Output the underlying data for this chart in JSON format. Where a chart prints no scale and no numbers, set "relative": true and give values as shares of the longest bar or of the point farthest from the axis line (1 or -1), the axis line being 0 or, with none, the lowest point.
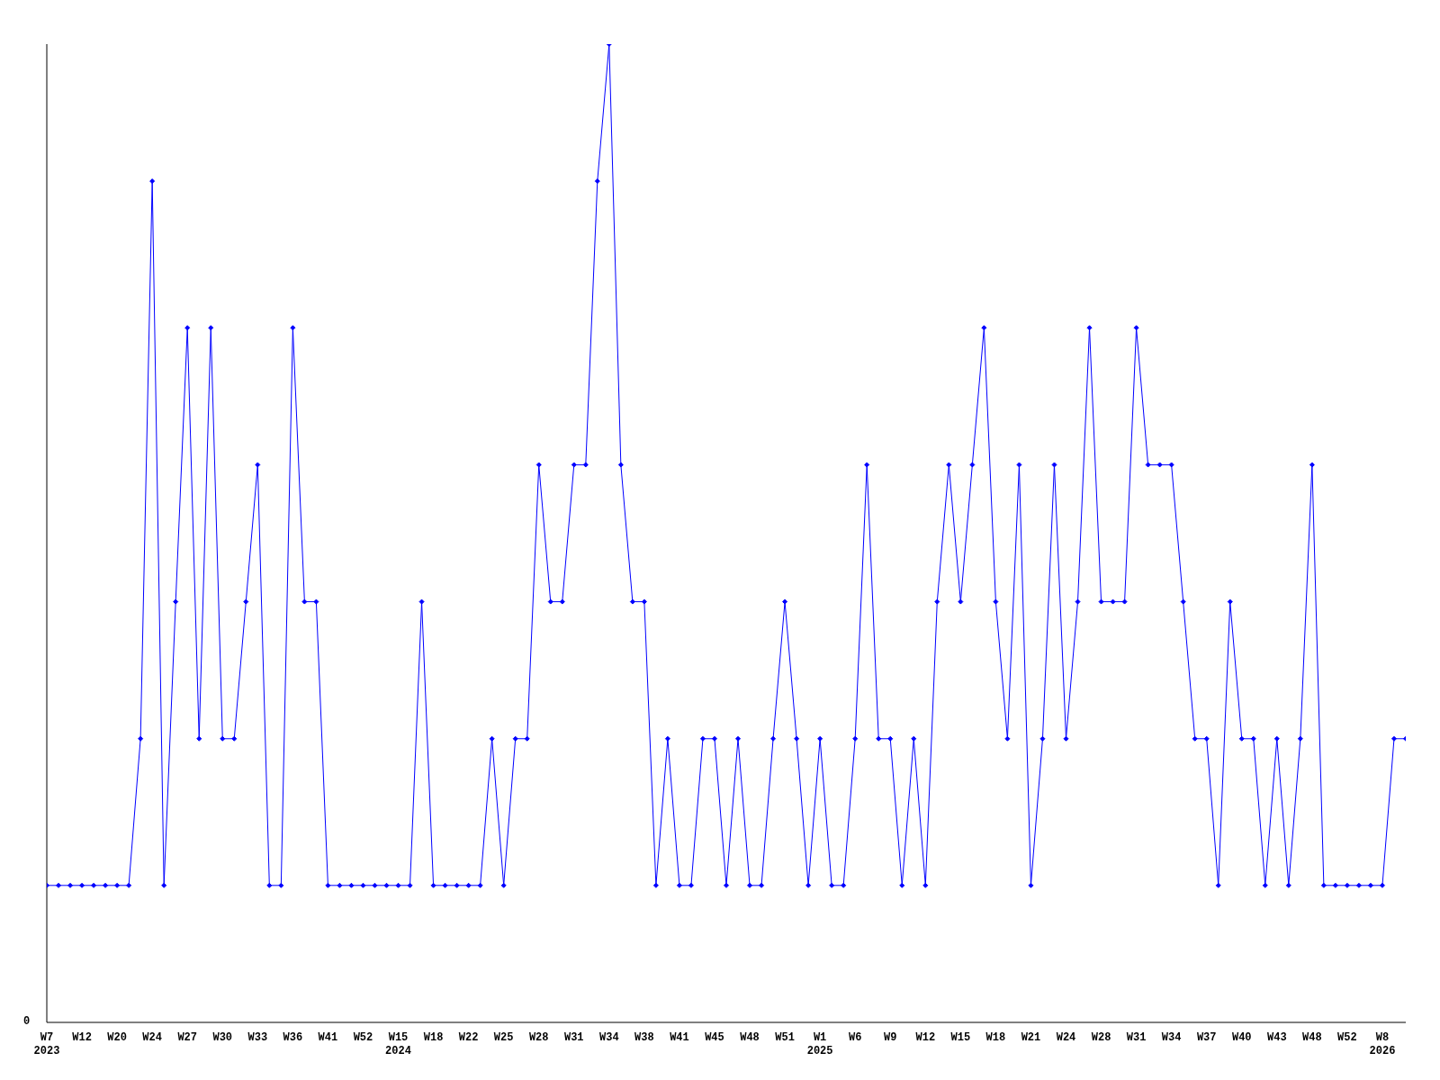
{
  "chart_data": {
    "type": "line",
    "relative": true,
    "categories": [
      "W7\n2023",
      null,
      null,
      "W12",
      null,
      null,
      "W20",
      null,
      null,
      "W24",
      null,
      null,
      "W27",
      null,
      null,
      "W30",
      null,
      null,
      "W33",
      null,
      null,
      "W36",
      null,
      null,
      "W41",
      null,
      null,
      "W52",
      null,
      null,
      "W15\n2024",
      null,
      null,
      "W18",
      null,
      null,
      "W22",
      null,
      null,
      "W25",
      null,
      null,
      "W28",
      null,
      null,
      "W31",
      null,
      null,
      "W34",
      null,
      null,
      "W38",
      null,
      null,
      "W41",
      null,
      null,
      "W45",
      null,
      null,
      "W48",
      null,
      null,
      "W51",
      null,
      null,
      "W1\n2025",
      null,
      null,
      "W6",
      null,
      null,
      "W9",
      null,
      null,
      "W12",
      null,
      null,
      "W15",
      null,
      null,
      "W18",
      null,
      null,
      "W21",
      null,
      null,
      "W24",
      null,
      null,
      "W28",
      null,
      null,
      "W31",
      null,
      null,
      "W34",
      null,
      null,
      "W37",
      null,
      null,
      "W40",
      null,
      null,
      "W43",
      null,
      null,
      "W48",
      null,
      null,
      "W52",
      null,
      null,
      "W8\n2026",
      null,
      null
    ],
    "series": [
      {
        "color": "#0000ff",
        "values": [
          0.14,
          0.14,
          0.14,
          0.14,
          0.14,
          0.14,
          0.14,
          0.14,
          0.29,
          0.86,
          0.14,
          0.43,
          0.71,
          0.29,
          0.71,
          0.29,
          0.29,
          0.43,
          0.57,
          0.14,
          0.14,
          0.71,
          0.43,
          0.43,
          0.14,
          0.14,
          0.14,
          0.14,
          0.14,
          0.14,
          0.14,
          0.14,
          0.43,
          0.14,
          0.14,
          0.14,
          0.14,
          0.14,
          0.29,
          0.14,
          0.29,
          0.29,
          0.57,
          0.43,
          0.43,
          0.57,
          0.57,
          0.86,
          1,
          0.57,
          0.43,
          0.43,
          0.14,
          0.29,
          0.14,
          0.14,
          0.29,
          0.29,
          0.14,
          0.29,
          0.14,
          0.14,
          0.29,
          0.43,
          0.29,
          0.14,
          0.29,
          0.14,
          0.14,
          0.29,
          0.57,
          0.29,
          0.29,
          0.14,
          0.29,
          0.14,
          0.43,
          0.57,
          0.43,
          0.57,
          0.71,
          0.43,
          0.29,
          0.57,
          0.14,
          0.29,
          0.57,
          0.29,
          0.43,
          0.71,
          0.43,
          0.43,
          0.43,
          0.71,
          0.57,
          0.57,
          0.57,
          0.43,
          0.29,
          0.29,
          0.14,
          0.43,
          0.29,
          0.29,
          0.14,
          0.29,
          0.14,
          0.29,
          0.57,
          0.14,
          0.14,
          0.14,
          0.14,
          0.14,
          0.14,
          0.29,
          0.29
        ]
      }
    ],
    "annotations": [
      "0"
    ],
    "marker": "diamond",
    "line_style": "solid",
    "grid": false,
    "legend": false
  }
}
